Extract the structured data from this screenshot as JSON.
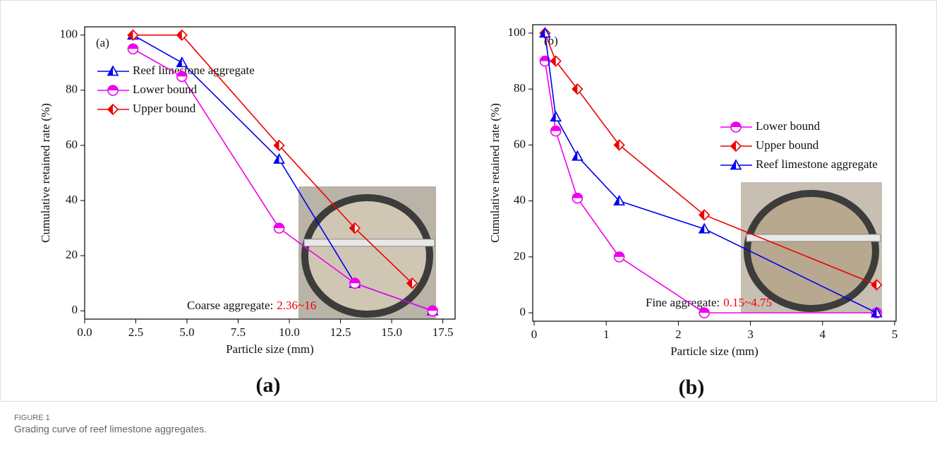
{
  "chart_data": [
    {
      "type": "line",
      "panel_label": "(a)",
      "subfigure_label": "(a)",
      "xlabel": "Particle size (mm)",
      "ylabel": "Cumulative retained rate (%)",
      "xlim": [
        0,
        18.1
      ],
      "ylim": [
        103,
        -3
      ],
      "xticks": [
        {
          "value": 0,
          "label": "0.0"
        },
        2.5,
        {
          "value": 5,
          "label": "5.0"
        },
        7.5,
        {
          "value": 10,
          "label": "10.0"
        },
        12.5,
        {
          "value": 15,
          "label": "15.0"
        },
        17.5
      ],
      "yticks": [
        0,
        20,
        40,
        60,
        80,
        100
      ],
      "legend": "upper left",
      "series": [
        {
          "name": "Reef limestone aggregate",
          "color": "#0000ee",
          "marker": "triangle",
          "x": [
            2.36,
            4.75,
            9.5,
            13.2,
            17
          ],
          "values": [
            100,
            90,
            55,
            10,
            0
          ]
        },
        {
          "name": "Lower bound",
          "color": "#ee00ee",
          "marker": "circle",
          "x": [
            2.36,
            4.75,
            9.5,
            13.2,
            17
          ],
          "values": [
            95,
            85,
            30,
            10,
            0
          ]
        },
        {
          "name": "Upper bound",
          "color": "#ee0000",
          "marker": "diamond",
          "x": [
            2.36,
            4.75,
            9.5,
            13.2,
            16
          ],
          "values": [
            100,
            100,
            60,
            30,
            10
          ]
        }
      ],
      "annotation": {
        "text": "Coarse aggregate:",
        "range": "2.36~16"
      }
    },
    {
      "type": "line",
      "panel_label": "(b)",
      "subfigure_label": "(b)",
      "xlabel": "Particle size (mm)",
      "ylabel": "Cumulative retained rate (%)",
      "xlim": [
        -0.02,
        5.02
      ],
      "ylim": [
        103,
        -3
      ],
      "xticks": [
        0,
        1,
        2,
        3,
        4,
        5
      ],
      "yticks": [
        0,
        20,
        40,
        60,
        80,
        100
      ],
      "legend": "center right",
      "series": [
        {
          "name": "Lower bound",
          "color": "#ee00ee",
          "marker": "circle",
          "x": [
            0.15,
            0.3,
            0.6,
            1.18,
            2.36,
            4.75
          ],
          "values": [
            90,
            65,
            41,
            20,
            0,
            0
          ]
        },
        {
          "name": "Upper bound",
          "color": "#ee0000",
          "marker": "diamond",
          "x": [
            0.15,
            0.3,
            0.6,
            1.18,
            2.36,
            4.75
          ],
          "values": [
            100,
            90,
            80,
            60,
            35,
            10
          ]
        },
        {
          "name": "Reef limestone aggregate",
          "color": "#0000ee",
          "marker": "triangle",
          "x": [
            0.15,
            0.3,
            0.6,
            1.18,
            2.36,
            4.75
          ],
          "values": [
            100,
            70,
            56,
            40,
            30,
            0
          ]
        }
      ],
      "annotation": {
        "text": "Fine aggregate:",
        "range": "0.15~4.75"
      }
    }
  ],
  "figure": {
    "label": "FIGURE 1",
    "caption": "Grading curve of reef limestone aggregates."
  }
}
